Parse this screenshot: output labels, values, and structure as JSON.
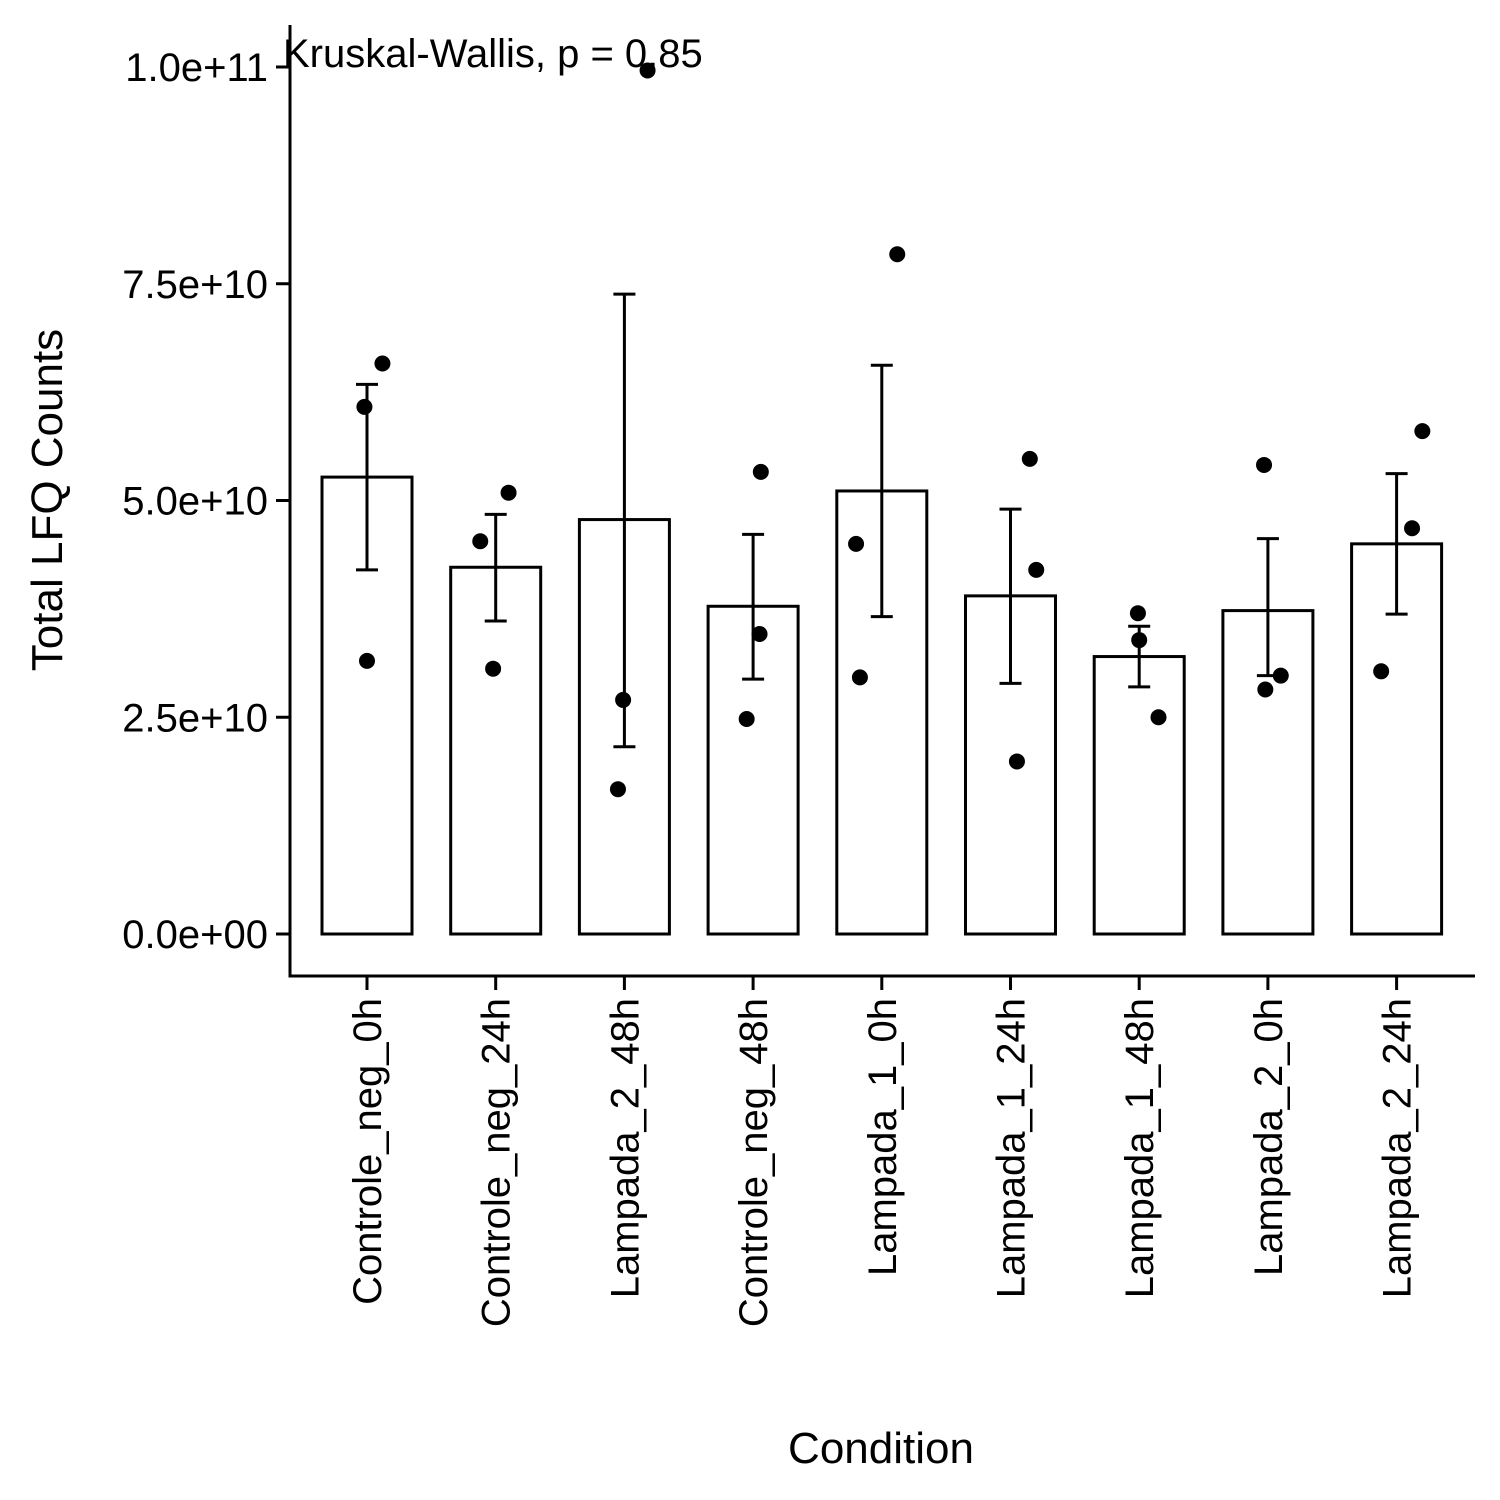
{
  "chart_data": {
    "type": "bar",
    "title": "",
    "xlabel": "Condition",
    "ylabel": "Total LFQ Counts",
    "annotation": "Kruskal-Wallis, p = 0.85",
    "ylim": [
      -5000000000,
      105000000000
    ],
    "yticks": [
      0,
      25000000000,
      50000000000,
      75000000000,
      100000000000
    ],
    "ytick_labels": [
      "0.0e+00",
      "2.5e+10",
      "5.0e+10",
      "7.5e+10",
      "1.0e+11"
    ],
    "grid": false,
    "legend": "none",
    "bar_fill": "#ffffff",
    "bar_stroke": "#000000",
    "categories": [
      "Controle_neg_0h",
      "Controle_neg_24h",
      "Lampada_2_48h",
      "Controle_neg_48h",
      "Lampada_1_0h",
      "Lampada_1_24h",
      "Lampada_1_48h",
      "Lampada_2_0h",
      "Lampada_2_24h"
    ],
    "values": [
      52700000000,
      42300000000,
      47800000000,
      37800000000,
      51100000000,
      39000000000,
      32000000000,
      37300000000,
      45000000000
    ],
    "error_low": [
      42000000000,
      36100000000,
      21600000000,
      29400000000,
      36600000000,
      28900000000,
      28500000000,
      29800000000,
      36900000000
    ],
    "error_high": [
      63400000000,
      48400000000,
      73800000000,
      46100000000,
      65600000000,
      49000000000,
      35500000000,
      45600000000,
      53100000000
    ],
    "points": [
      [
        {
          "offset": -0.02,
          "y": 60800000000
        },
        {
          "offset": 0.12,
          "y": 65800000000
        },
        {
          "offset": 0.0,
          "y": 31500000000
        }
      ],
      [
        {
          "offset": -0.12,
          "y": 45300000000
        },
        {
          "offset": 0.1,
          "y": 50900000000
        },
        {
          "offset": -0.02,
          "y": 30600000000
        }
      ],
      [
        {
          "offset": -0.05,
          "y": 16700000000
        },
        {
          "offset": -0.01,
          "y": 27000000000
        },
        {
          "offset": 0.18,
          "y": 99600000000
        }
      ],
      [
        {
          "offset": -0.05,
          "y": 24800000000
        },
        {
          "offset": 0.05,
          "y": 34600000000
        },
        {
          "offset": 0.06,
          "y": 53300000000
        }
      ],
      [
        {
          "offset": -0.2,
          "y": 45000000000
        },
        {
          "offset": -0.17,
          "y": 29600000000
        },
        {
          "offset": 0.12,
          "y": 78400000000
        }
      ],
      [
        {
          "offset": 0.05,
          "y": 19900000000
        },
        {
          "offset": 0.2,
          "y": 42000000000
        },
        {
          "offset": 0.15,
          "y": 54800000000
        }
      ],
      [
        {
          "offset": -0.01,
          "y": 37000000000
        },
        {
          "offset": 0.0,
          "y": 33900000000
        },
        {
          "offset": 0.15,
          "y": 25000000000
        }
      ],
      [
        {
          "offset": -0.03,
          "y": 54100000000
        },
        {
          "offset": 0.1,
          "y": 29800000000
        },
        {
          "offset": -0.02,
          "y": 28200000000
        }
      ],
      [
        {
          "offset": -0.12,
          "y": 30300000000
        },
        {
          "offset": 0.12,
          "y": 46800000000
        },
        {
          "offset": 0.2,
          "y": 58000000000
        }
      ]
    ]
  }
}
